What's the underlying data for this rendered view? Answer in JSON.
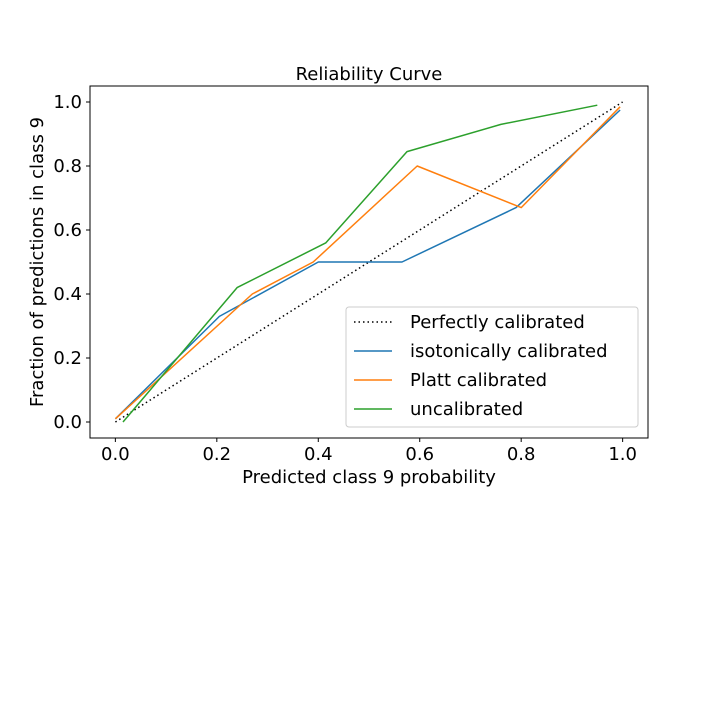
{
  "chart_data": {
    "type": "line",
    "title": "Reliability Curve",
    "xlabel": "Predicted class 9 probability",
    "ylabel": "Fraction of predictions in class 9",
    "xlim": [
      -0.05,
      1.05
    ],
    "ylim": [
      -0.05,
      1.05
    ],
    "xticks": [
      "0.0",
      "0.2",
      "0.4",
      "0.6",
      "0.8",
      "1.0"
    ],
    "yticks": [
      "0.0",
      "0.2",
      "0.4",
      "0.6",
      "0.8",
      "1.0"
    ],
    "grid": false,
    "legend_position": "bottom-right",
    "series": [
      {
        "name": "Perfectly calibrated",
        "color": "#000000",
        "style": "dotted",
        "x": [
          0,
          1
        ],
        "y": [
          0,
          1
        ]
      },
      {
        "name": "isotonically calibrated",
        "color": "#1f77b4",
        "style": "solid",
        "x": [
          0.0,
          0.205,
          0.4,
          0.565,
          0.79,
          0.995
        ],
        "y": [
          0.01,
          0.33,
          0.5,
          0.5,
          0.67,
          0.975
        ]
      },
      {
        "name": "Platt calibrated",
        "color": "#ff7f0e",
        "style": "solid",
        "x": [
          0.0,
          0.27,
          0.39,
          0.595,
          0.8,
          0.995
        ],
        "y": [
          0.01,
          0.4,
          0.5,
          0.8,
          0.67,
          0.985
        ]
      },
      {
        "name": "uncalibrated",
        "color": "#2ca02c",
        "style": "solid",
        "x": [
          0.015,
          0.24,
          0.415,
          0.575,
          0.76,
          0.95
        ],
        "y": [
          0.0,
          0.42,
          0.56,
          0.845,
          0.93,
          0.99
        ]
      }
    ]
  }
}
